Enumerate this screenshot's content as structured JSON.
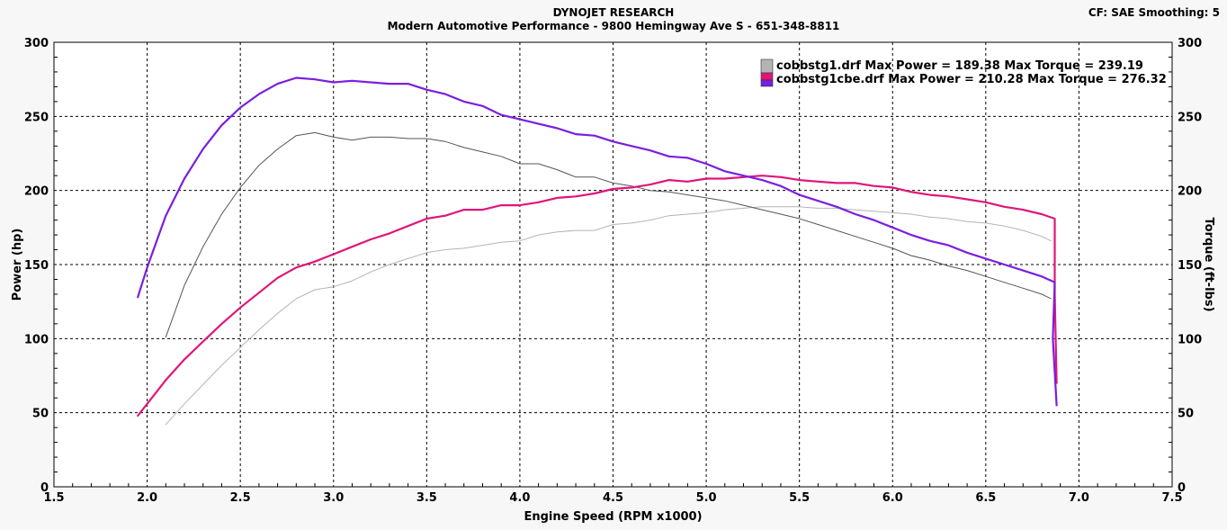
{
  "header": {
    "title": "DYNOJET RESEARCH",
    "subtitle": "Modern Automotive Performance - 9800 Hemingway Ave S - 651-348-8811",
    "settings": "CF: SAE  Smoothing: 5"
  },
  "colors": {
    "run1": "#b4b4b4",
    "run1_torque": "#555555",
    "run2_power": "#e0157a",
    "run2_torque": "#7a1ee0",
    "grid": "#000000",
    "plot_bg": "#ffffff"
  },
  "chart_data": {
    "type": "line",
    "title": "DYNOJET RESEARCH",
    "subtitle": "Modern Automotive Performance - 9800 Hemingway Ave S - 651-348-8811",
    "xlabel": "Engine Speed (RPM x1000)",
    "ylabel": "Power (hp)",
    "y2label": "Torque (ft-lbs)",
    "xlim": [
      1.5,
      7.5
    ],
    "ylim": [
      0,
      300
    ],
    "y2lim": [
      0,
      300
    ],
    "xticks": [
      "1.5",
      "2.0",
      "2.5",
      "3.0",
      "3.5",
      "4.0",
      "4.5",
      "5.0",
      "5.5",
      "6.0",
      "6.5",
      "7.0",
      "7.5"
    ],
    "yticks": [
      "0",
      "50",
      "100",
      "150",
      "200",
      "250",
      "300"
    ],
    "grid": true,
    "legend_position": "top-right",
    "legend": [
      {
        "file": "cobbstg1.drf",
        "max_power": "Max Power = 189.38",
        "max_torque": "Max Torque = 239.19",
        "swatch": "#b4b4b4"
      },
      {
        "file": "cobbstg1cbe.drf",
        "max_power": "Max Power = 210.28",
        "max_torque": "Max Torque = 276.32",
        "swatch": "#e0157a"
      }
    ],
    "series": [
      {
        "name": "cobbstg1.drf",
        "kind": "power",
        "color": "#b4b4b4",
        "x": [
          2.1,
          2.2,
          2.3,
          2.4,
          2.5,
          2.6,
          2.7,
          2.8,
          2.9,
          3.0,
          3.1,
          3.2,
          3.3,
          3.4,
          3.5,
          3.6,
          3.7,
          3.8,
          3.9,
          4.0,
          4.1,
          4.2,
          4.3,
          4.4,
          4.5,
          4.6,
          4.7,
          4.8,
          4.9,
          5.0,
          5.1,
          5.2,
          5.3,
          5.4,
          5.5,
          5.6,
          5.7,
          5.8,
          5.9,
          6.0,
          6.1,
          6.2,
          6.3,
          6.4,
          6.5,
          6.6,
          6.7,
          6.8,
          6.85
        ],
        "y": [
          42,
          56,
          69,
          82,
          94,
          106,
          117,
          127,
          133,
          135,
          139,
          145,
          150,
          154,
          158,
          160,
          161,
          163,
          165,
          166,
          170,
          172,
          173,
          173,
          177,
          178,
          180,
          183,
          184,
          185,
          187,
          188,
          189,
          189,
          189,
          188,
          188,
          187,
          186,
          185,
          184,
          182,
          181,
          179,
          178,
          176,
          173,
          169,
          166
        ]
      },
      {
        "name": "cobbstg1.drf",
        "kind": "torque",
        "color": "#555555",
        "x": [
          2.1,
          2.2,
          2.3,
          2.4,
          2.5,
          2.6,
          2.7,
          2.8,
          2.9,
          3.0,
          3.1,
          3.2,
          3.3,
          3.4,
          3.5,
          3.6,
          3.7,
          3.8,
          3.9,
          4.0,
          4.1,
          4.2,
          4.3,
          4.4,
          4.5,
          4.6,
          4.7,
          4.8,
          4.9,
          5.0,
          5.1,
          5.2,
          5.3,
          5.4,
          5.5,
          5.6,
          5.7,
          5.8,
          5.9,
          6.0,
          6.1,
          6.2,
          6.3,
          6.4,
          6.5,
          6.6,
          6.7,
          6.8,
          6.85
        ],
        "y": [
          101,
          136,
          162,
          184,
          202,
          217,
          228,
          237,
          239,
          236,
          234,
          236,
          236,
          235,
          235,
          233,
          229,
          226,
          223,
          218,
          218,
          214,
          209,
          209,
          205,
          203,
          200,
          199,
          197,
          195,
          193,
          190,
          187,
          184,
          181,
          177,
          173,
          169,
          165,
          161,
          156,
          153,
          149,
          146,
          142,
          138,
          134,
          130,
          127
        ]
      },
      {
        "name": "cobbstg1cbe.drf",
        "kind": "power",
        "color": "#e0157a",
        "x": [
          1.95,
          2.0,
          2.1,
          2.2,
          2.3,
          2.4,
          2.5,
          2.6,
          2.7,
          2.8,
          2.9,
          3.0,
          3.1,
          3.2,
          3.3,
          3.4,
          3.5,
          3.6,
          3.7,
          3.8,
          3.9,
          4.0,
          4.1,
          4.2,
          4.3,
          4.4,
          4.5,
          4.6,
          4.7,
          4.8,
          4.9,
          5.0,
          5.1,
          5.2,
          5.3,
          5.4,
          5.5,
          5.6,
          5.7,
          5.8,
          5.9,
          6.0,
          6.1,
          6.2,
          6.3,
          6.4,
          6.5,
          6.6,
          6.7,
          6.8,
          6.87,
          6.87,
          6.88
        ],
        "y": [
          48,
          56,
          72,
          86,
          98,
          110,
          121,
          131,
          141,
          148,
          152,
          157,
          162,
          167,
          171,
          176,
          181,
          183,
          187,
          187,
          190,
          190,
          192,
          195,
          196,
          198,
          201,
          202,
          204,
          207,
          206,
          208,
          208,
          209,
          210,
          209,
          207,
          206,
          205,
          205,
          203,
          202,
          199,
          197,
          196,
          194,
          192,
          189,
          187,
          184,
          181,
          130,
          70
        ]
      },
      {
        "name": "cobbstg1cbe.drf",
        "kind": "torque",
        "color": "#7a1ee0",
        "x": [
          1.95,
          2.0,
          2.1,
          2.2,
          2.3,
          2.4,
          2.5,
          2.6,
          2.7,
          2.8,
          2.9,
          3.0,
          3.1,
          3.2,
          3.3,
          3.4,
          3.5,
          3.6,
          3.7,
          3.8,
          3.9,
          4.0,
          4.1,
          4.2,
          4.3,
          4.4,
          4.5,
          4.6,
          4.7,
          4.8,
          4.9,
          5.0,
          5.1,
          5.2,
          5.3,
          5.4,
          5.5,
          5.6,
          5.7,
          5.8,
          5.9,
          6.0,
          6.1,
          6.2,
          6.3,
          6.4,
          6.5,
          6.6,
          6.7,
          6.8,
          6.87,
          6.86,
          6.88
        ],
        "y": [
          128,
          148,
          183,
          208,
          228,
          244,
          256,
          265,
          272,
          276,
          275,
          273,
          274,
          273,
          272,
          272,
          268,
          265,
          260,
          257,
          251,
          248,
          245,
          242,
          238,
          237,
          233,
          230,
          227,
          223,
          222,
          218,
          213,
          210,
          207,
          203,
          197,
          193,
          189,
          184,
          180,
          175,
          170,
          166,
          163,
          158,
          154,
          150,
          146,
          142,
          138,
          100,
          55
        ]
      }
    ]
  }
}
